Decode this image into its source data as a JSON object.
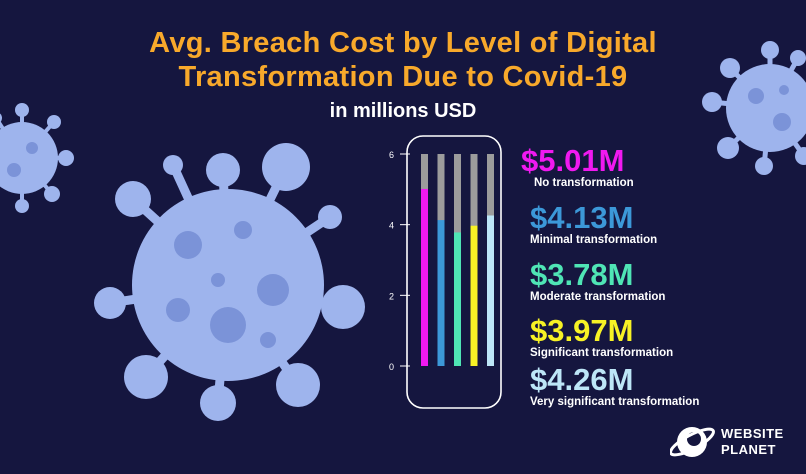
{
  "header": {
    "title_line1": "Avg. Breach Cost by Level of Digital",
    "title_line2": "Transformation Due to Covid-19",
    "subtitle": "in millions USD"
  },
  "chart_data": {
    "type": "bar",
    "title": "Avg. Breach Cost by Level of Digital Transformation Due to Covid-19",
    "subtitle": "in millions USD",
    "categories": [
      "No transformation",
      "Minimal transformation",
      "Moderate transformation",
      "Significant transformation",
      "Very significant transformation"
    ],
    "values": [
      5.01,
      4.13,
      3.78,
      3.97,
      4.26
    ],
    "value_labels": [
      "$5.01M",
      "$4.13M",
      "$3.78M",
      "$3.97M",
      "$4.26M"
    ],
    "colors": [
      "#f019f0",
      "#3c98d8",
      "#4fe5b5",
      "#f7f225",
      "#bde6f7"
    ],
    "track_color": "#9c9c9c",
    "yticks": [
      "0",
      "2",
      "4",
      "6"
    ],
    "ylim": [
      0,
      6
    ],
    "xlabel": "",
    "ylabel": "",
    "grid": false,
    "legend": "right"
  },
  "brand": {
    "line1": "WEBSITE",
    "line2": "PLANET"
  },
  "colors": {
    "background": "#15163f",
    "title": "#f8a92b",
    "virus_body": "#9eb4ed",
    "virus_spot": "#7b93d8"
  }
}
